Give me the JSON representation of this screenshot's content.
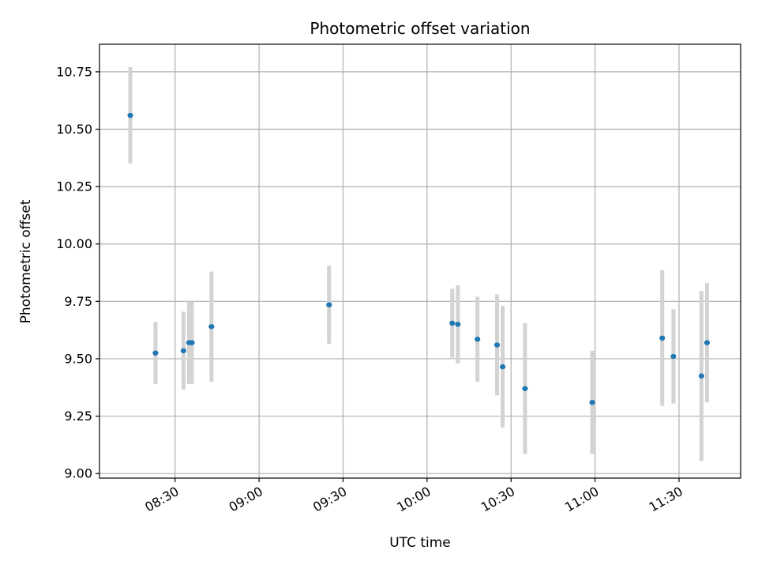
{
  "chart_data": {
    "type": "scatter",
    "title": "Photometric offset variation",
    "xlabel": "UTC time",
    "ylabel": "Photometric offset",
    "x_axis_type": "time",
    "xlim": [
      "08:03",
      "11:52"
    ],
    "ylim": [
      8.98,
      10.87
    ],
    "grid": true,
    "x_ticks": [
      "08:30",
      "09:00",
      "09:30",
      "10:00",
      "10:30",
      "11:00",
      "11:30"
    ],
    "y_ticks": [
      "9.00",
      "9.25",
      "9.50",
      "9.75",
      "10.00",
      "10.25",
      "10.50",
      "10.75"
    ],
    "y_tick_values": [
      9.0,
      9.25,
      9.5,
      9.75,
      10.0,
      10.25,
      10.5,
      10.75
    ],
    "marker_color": "#1f77b4",
    "errorbar_color": "#d3d3d3",
    "series": [
      {
        "points": [
          {
            "x": "08:14",
            "y": 10.56,
            "err": 0.21
          },
          {
            "x": "08:23",
            "y": 9.525,
            "err": 0.135
          },
          {
            "x": "08:33",
            "y": 9.535,
            "err": 0.17
          },
          {
            "x": "08:35",
            "y": 9.57,
            "err": 0.18
          },
          {
            "x": "08:36",
            "y": 9.57,
            "err": 0.18
          },
          {
            "x": "08:43",
            "y": 9.64,
            "err": 0.24
          },
          {
            "x": "09:25",
            "y": 9.735,
            "err": 0.17
          },
          {
            "x": "10:09",
            "y": 9.655,
            "err": 0.15
          },
          {
            "x": "10:11",
            "y": 9.65,
            "err": 0.17
          },
          {
            "x": "10:18",
            "y": 9.585,
            "err": 0.185
          },
          {
            "x": "10:25",
            "y": 9.56,
            "err": 0.22
          },
          {
            "x": "10:27",
            "y": 9.465,
            "err": 0.265
          },
          {
            "x": "10:35",
            "y": 9.37,
            "err": 0.285
          },
          {
            "x": "10:59",
            "y": 9.31,
            "err": 0.225
          },
          {
            "x": "11:24",
            "y": 9.59,
            "err": 0.295
          },
          {
            "x": "11:28",
            "y": 9.51,
            "err": 0.205
          },
          {
            "x": "11:38",
            "y": 9.425,
            "err": 0.37
          },
          {
            "x": "11:40",
            "y": 9.57,
            "err": 0.26
          }
        ]
      }
    ]
  }
}
